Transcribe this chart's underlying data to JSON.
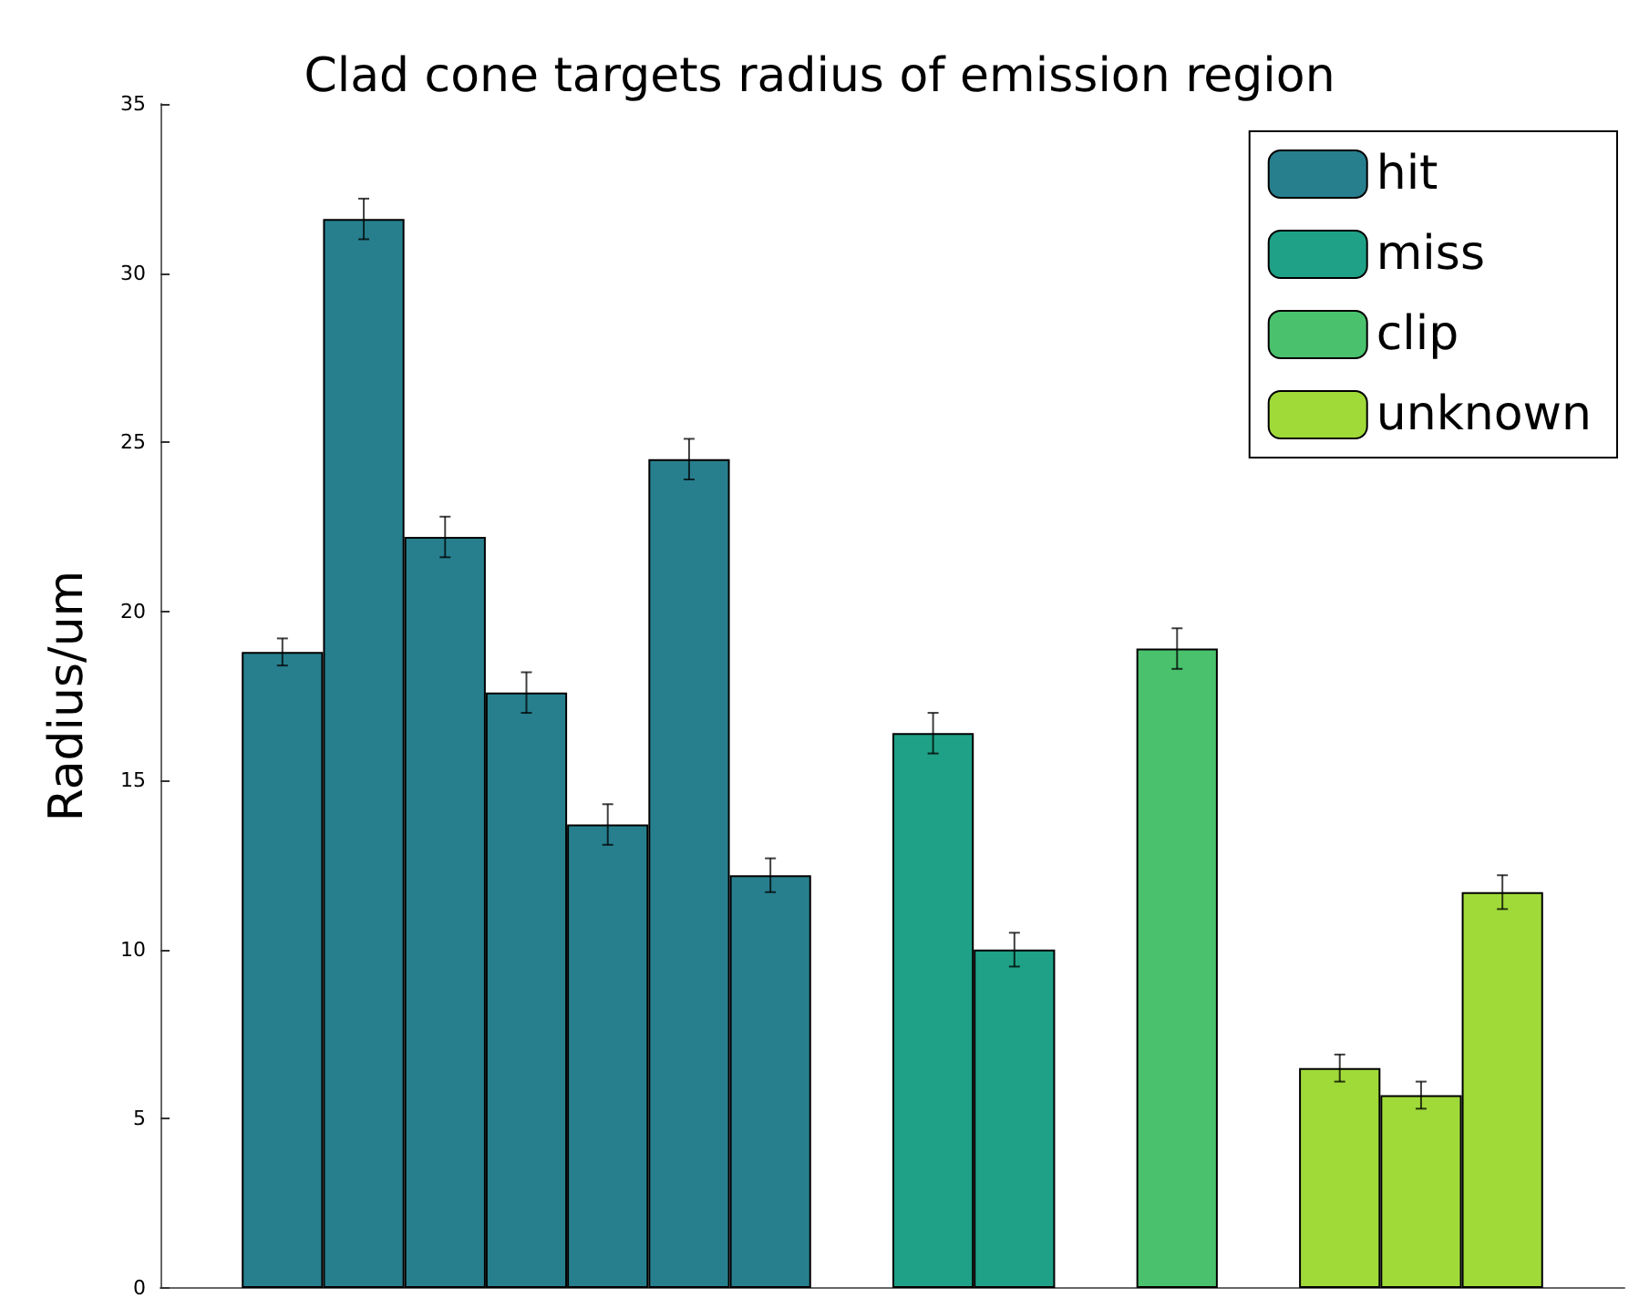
{
  "chart_data": {
    "type": "bar",
    "title": "Clad cone targets radius of emission region",
    "ylabel": "Radius/um",
    "categories": [
      null,
      null,
      null,
      null,
      null,
      null,
      null,
      null,
      null,
      null,
      null,
      null,
      null,
      null,
      null,
      null,
      null,
      null
    ],
    "series": [
      {
        "name": "hit",
        "color": "#277f8e",
        "values": [
          null,
          18.8,
          31.6,
          22.2,
          17.6,
          13.7,
          24.5,
          12.2,
          null,
          null,
          null,
          null,
          null,
          null,
          null,
          null,
          null,
          null
        ],
        "errors": [
          null,
          0.4,
          0.6,
          0.6,
          0.6,
          0.6,
          0.6,
          0.5,
          null,
          null,
          null,
          null,
          null,
          null,
          null,
          null,
          null,
          null
        ]
      },
      {
        "name": "miss",
        "color": "#1fa187",
        "values": [
          null,
          null,
          null,
          null,
          null,
          null,
          null,
          null,
          null,
          16.4,
          10.0,
          null,
          null,
          null,
          null,
          null,
          null,
          null
        ],
        "errors": [
          null,
          null,
          null,
          null,
          null,
          null,
          null,
          null,
          null,
          0.6,
          0.5,
          null,
          null,
          null,
          null,
          null,
          null,
          null
        ]
      },
      {
        "name": "clip",
        "color": "#4ac16d",
        "values": [
          null,
          null,
          null,
          null,
          null,
          null,
          null,
          null,
          null,
          null,
          null,
          null,
          18.9,
          null,
          null,
          null,
          null,
          null
        ],
        "errors": [
          null,
          null,
          null,
          null,
          null,
          null,
          null,
          null,
          null,
          null,
          null,
          null,
          0.6,
          null,
          null,
          null,
          null,
          null
        ]
      },
      {
        "name": "unknown",
        "color": "#a0da39",
        "values": [
          null,
          null,
          null,
          null,
          null,
          null,
          null,
          null,
          null,
          null,
          null,
          null,
          null,
          null,
          6.5,
          5.7,
          11.7,
          null
        ],
        "errors": [
          null,
          null,
          null,
          null,
          null,
          null,
          null,
          null,
          null,
          null,
          null,
          null,
          null,
          null,
          0.4,
          0.4,
          0.5,
          null
        ]
      }
    ],
    "ylim": [
      0,
      35
    ],
    "yticks": [
      0,
      5,
      10,
      15,
      20,
      25,
      30,
      35
    ],
    "grid": false,
    "legend": "top right",
    "tick_labels": "y"
  }
}
